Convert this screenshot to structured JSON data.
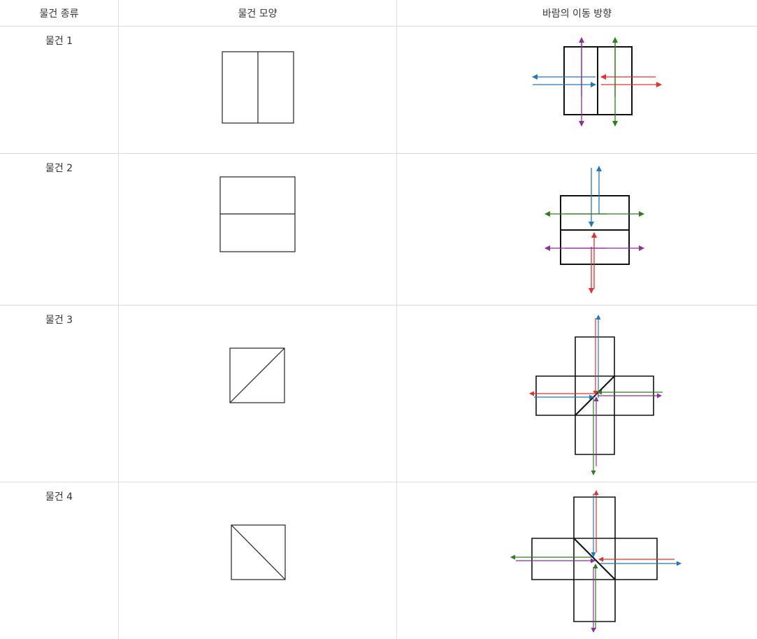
{
  "header": {
    "col_type": "물건 종류",
    "col_shape": "물건 모양",
    "col_wind": "바람의 이동 방향"
  },
  "rows": [
    {
      "label": "물건 1",
      "shape": "vertical-split-square"
    },
    {
      "label": "물건 2",
      "shape": "horizontal-split-square"
    },
    {
      "label": "물건 3",
      "shape": "diagonal-bottomleft-topright-square"
    },
    {
      "label": "물건 4",
      "shape": "diagonal-topleft-bottomright-square"
    }
  ],
  "arrow_colors": {
    "blue": "#1f77c4",
    "red": "#e8302a",
    "green": "#2e7d1e",
    "purple": "#8b2f9a"
  }
}
